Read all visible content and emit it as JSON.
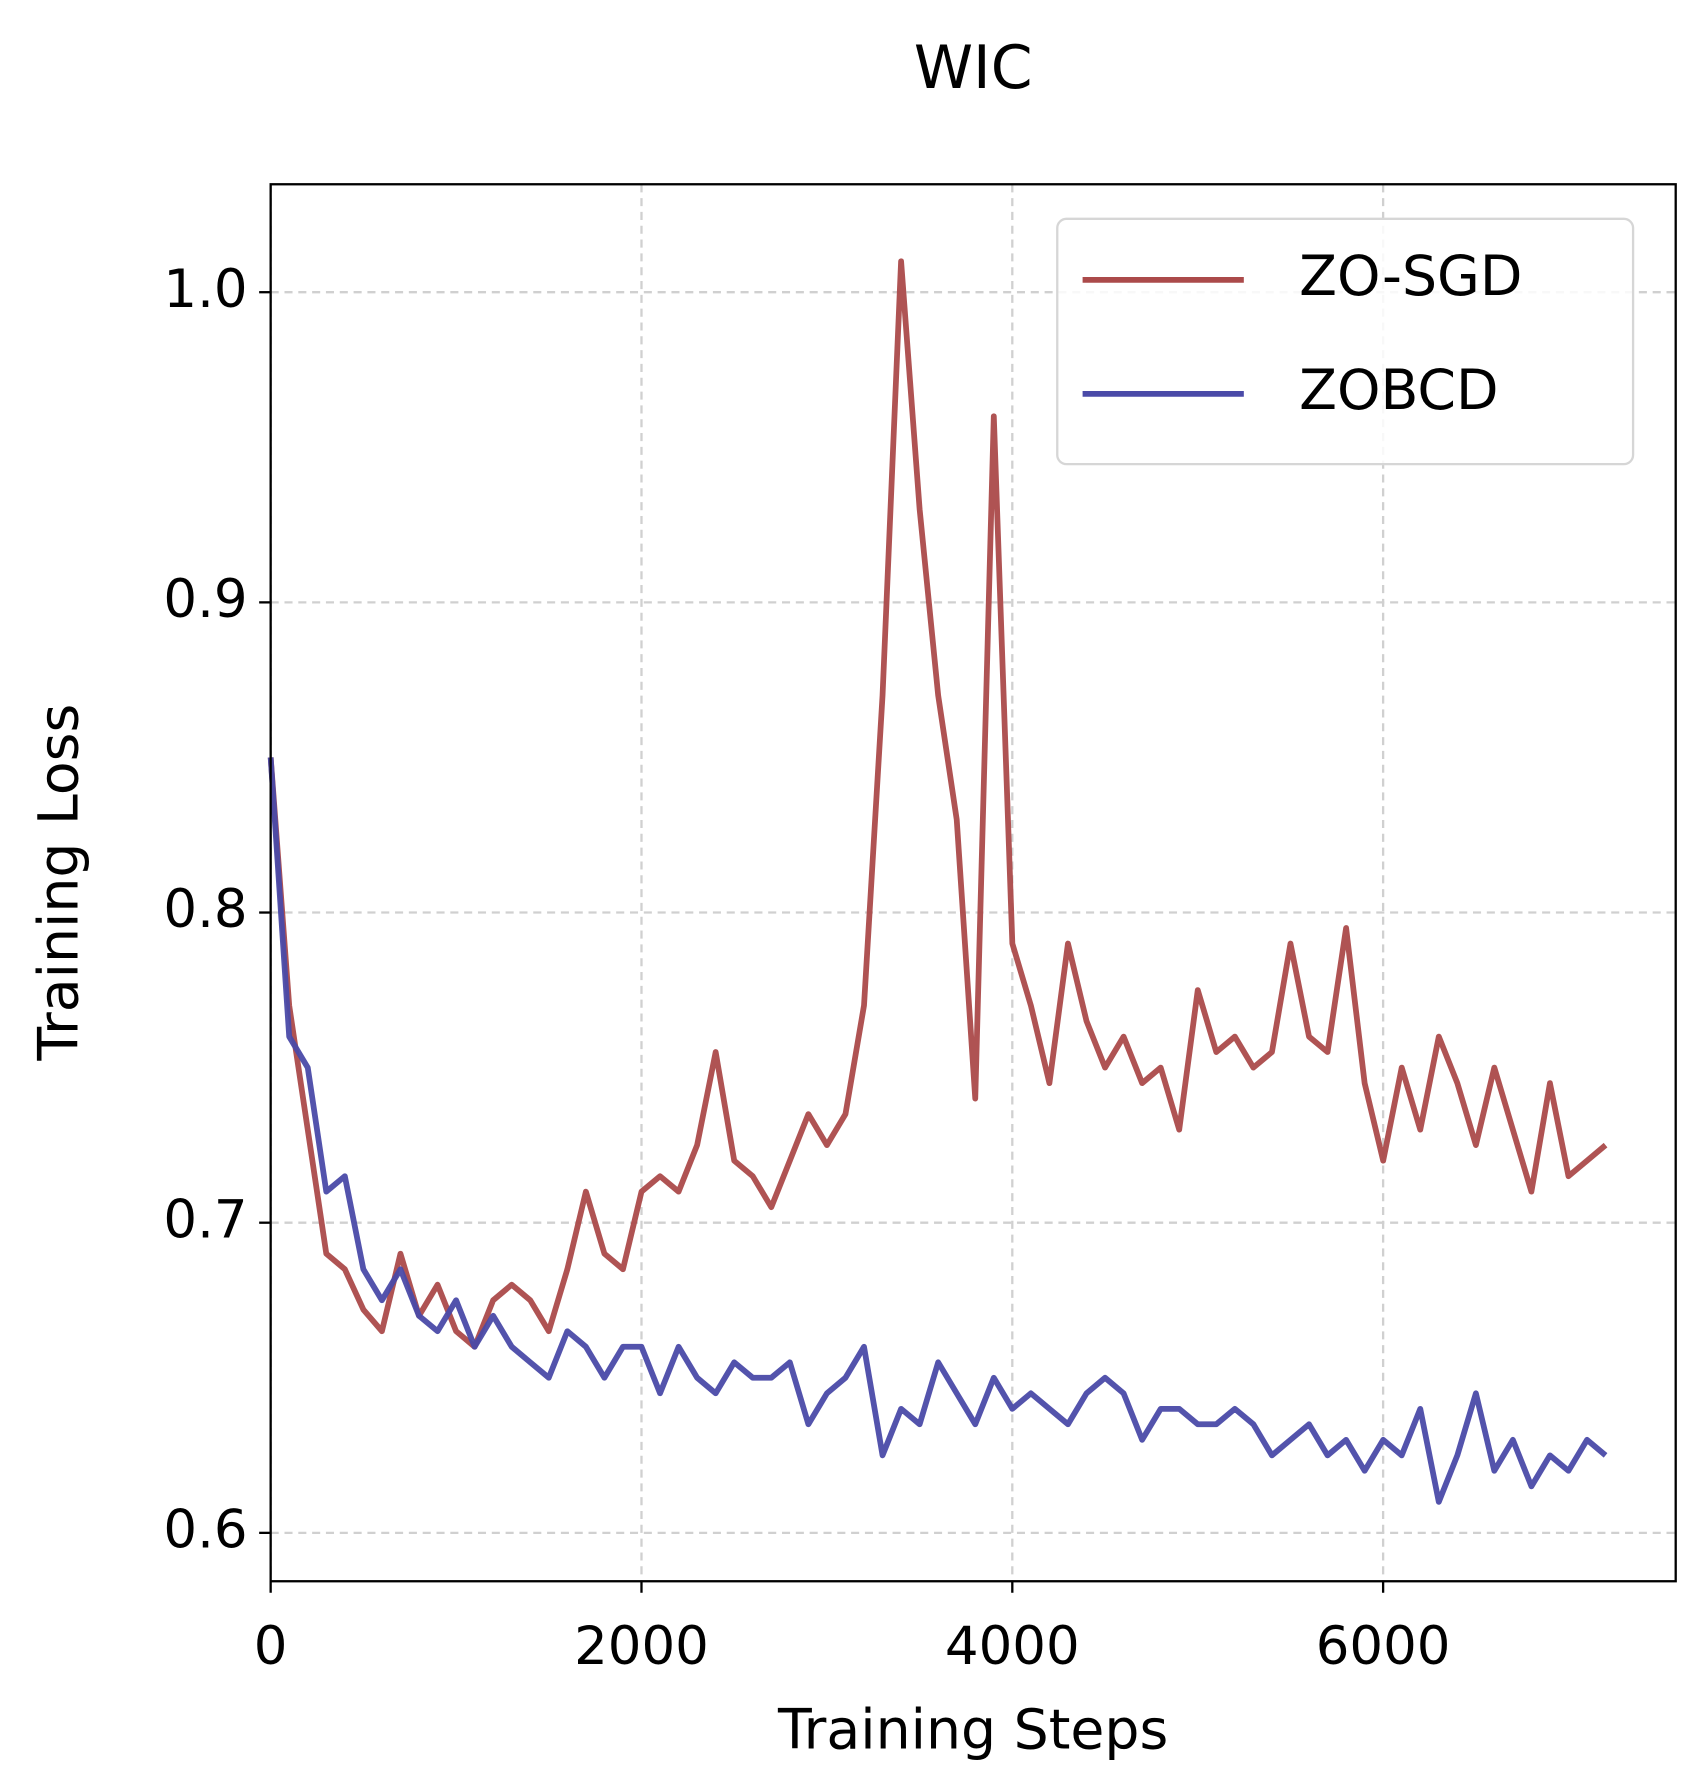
{
  "chart_data": {
    "type": "line",
    "title": "WIC",
    "x_label": "Training Steps",
    "y_label": "Training Loss",
    "x": [
      0,
      100,
      200,
      300,
      400,
      500,
      600,
      700,
      800,
      900,
      1000,
      1100,
      1200,
      1300,
      1400,
      1500,
      1600,
      1700,
      1800,
      1900,
      2000,
      2100,
      2200,
      2300,
      2400,
      2500,
      2600,
      2700,
      2800,
      2900,
      3000,
      3100,
      3200,
      3300,
      3400,
      3500,
      3600,
      3700,
      3800,
      3900,
      4000,
      4100,
      4200,
      4300,
      4400,
      4500,
      4600,
      4700,
      4800,
      4900,
      5000,
      5100,
      5200,
      5300,
      5400,
      5500,
      5600,
      5700,
      5800,
      5900,
      6000,
      6100,
      6200,
      6300,
      6400,
      6500,
      6600,
      6700,
      6800,
      6900,
      7000,
      7100,
      7200
    ],
    "series": [
      {
        "name": "ZO-SGD",
        "color": "#ab4a4a",
        "values": [
          0.85,
          0.77,
          0.73,
          0.69,
          0.685,
          0.672,
          0.665,
          0.69,
          0.67,
          0.68,
          0.665,
          0.66,
          0.675,
          0.68,
          0.675,
          0.665,
          0.685,
          0.71,
          0.69,
          0.685,
          0.71,
          0.715,
          0.71,
          0.725,
          0.755,
          0.72,
          0.715,
          0.705,
          0.72,
          0.735,
          0.725,
          0.735,
          0.77,
          0.87,
          1.01,
          0.93,
          0.87,
          0.83,
          0.74,
          0.96,
          0.79,
          0.77,
          0.745,
          0.79,
          0.765,
          0.75,
          0.76,
          0.745,
          0.75,
          0.73,
          0.775,
          0.755,
          0.76,
          0.75,
          0.755,
          0.79,
          0.76,
          0.755,
          0.795,
          0.745,
          0.72,
          0.75,
          0.73,
          0.76,
          0.745,
          0.725,
          0.75,
          0.73,
          0.71,
          0.745,
          0.715,
          0.72,
          0.725
        ]
      },
      {
        "name": "ZOBCD",
        "color": "#4a4aa8",
        "values": [
          0.85,
          0.76,
          0.75,
          0.71,
          0.715,
          0.685,
          0.675,
          0.685,
          0.67,
          0.665,
          0.675,
          0.66,
          0.67,
          0.66,
          0.655,
          0.65,
          0.665,
          0.66,
          0.65,
          0.66,
          0.66,
          0.645,
          0.66,
          0.65,
          0.645,
          0.655,
          0.65,
          0.65,
          0.655,
          0.635,
          0.645,
          0.65,
          0.66,
          0.625,
          0.64,
          0.635,
          0.655,
          0.645,
          0.635,
          0.65,
          0.64,
          0.645,
          0.64,
          0.635,
          0.645,
          0.65,
          0.645,
          0.63,
          0.64,
          0.64,
          0.635,
          0.635,
          0.64,
          0.635,
          0.625,
          0.63,
          0.635,
          0.625,
          0.63,
          0.62,
          0.63,
          0.625,
          0.64,
          0.61,
          0.625,
          0.645,
          0.62,
          0.63,
          0.615,
          0.625,
          0.62,
          0.63,
          0.625
        ]
      }
    ],
    "xlim": [
      0,
      7578
    ],
    "ylim": [
      0.5844,
      1.0348
    ],
    "xticks": [
      0,
      2000,
      4000,
      6000
    ],
    "yticks": [
      0.6,
      0.7,
      0.8,
      0.9,
      {
        "value": 1.0,
        "label": "1.0"
      }
    ],
    "grid": true,
    "legend": "upper right"
  }
}
